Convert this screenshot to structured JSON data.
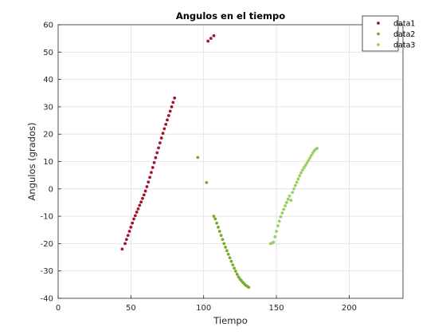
{
  "chart_data": {
    "type": "scatter",
    "title": "Angulos en el tiempo",
    "xlabel": "Tiempo",
    "ylabel": "Angulos (grados)",
    "xlim": [
      0,
      237
    ],
    "ylim": [
      -40,
      60
    ],
    "xticks": [
      0,
      50,
      100,
      150,
      200
    ],
    "yticks": [
      -40,
      -30,
      -20,
      -10,
      0,
      10,
      20,
      30,
      40,
      50,
      60
    ],
    "grid": true,
    "legend_position": "top-right",
    "series": [
      {
        "name": "data1",
        "color": "#a2142f",
        "x": [
          44,
          46,
          47,
          48,
          49,
          50,
          51,
          52,
          53,
          54,
          55,
          56,
          57,
          58,
          59,
          60,
          61,
          62,
          63,
          64,
          65,
          66,
          67,
          68,
          69,
          70,
          71,
          72,
          73,
          74,
          75,
          76,
          77,
          78,
          79,
          80,
          103,
          105,
          107
        ],
        "y": [
          -22,
          -20,
          -18.5,
          -17,
          -15.5,
          -14,
          -12.5,
          -11,
          -9.8,
          -8.5,
          -7.3,
          -6,
          -4.8,
          -3.5,
          -2.2,
          -0.8,
          0.8,
          2.5,
          4.2,
          6,
          7.8,
          9.6,
          11.4,
          13.2,
          15,
          16.8,
          18.6,
          20.3,
          22,
          23.6,
          25.2,
          26.8,
          28.4,
          30,
          31.6,
          33.2,
          54,
          55,
          56
        ]
      },
      {
        "name": "data2",
        "color": "#77ac30",
        "x": [
          96,
          102,
          107,
          108,
          109,
          110,
          111,
          112,
          113,
          114,
          115,
          116,
          117,
          118,
          119,
          120,
          121,
          122,
          123,
          124,
          125,
          126,
          127,
          128,
          129,
          130,
          131
        ],
        "y": [
          11.5,
          2.3,
          -10,
          -11,
          -12.5,
          -14,
          -15.5,
          -17,
          -18.5,
          -20,
          -21.3,
          -22.6,
          -23.9,
          -25.2,
          -26.5,
          -27.8,
          -29,
          -30.1,
          -31.2,
          -32.2,
          -33,
          -33.6,
          -34.2,
          -34.8,
          -35.3,
          -35.6,
          -36
        ]
      },
      {
        "name": "data3",
        "color": "#9bd065",
        "x": [
          146,
          147,
          148,
          149,
          150,
          151,
          152,
          153,
          154,
          155,
          156,
          157,
          158,
          159,
          160,
          161,
          162,
          163,
          164,
          165,
          166,
          167,
          168,
          169,
          170,
          171,
          172,
          173,
          174,
          175,
          176,
          177,
          178
        ],
        "y": [
          -20,
          -19.8,
          -19.5,
          -17.5,
          -15.5,
          -13.5,
          -11.8,
          -10.2,
          -8.8,
          -7.5,
          -6.2,
          -5,
          -3.8,
          -2.6,
          -4.2,
          -1.3,
          0,
          1.2,
          2.4,
          3.6,
          4.8,
          5.9,
          6.9,
          7.8,
          8.6,
          9.5,
          10.4,
          11.3,
          12.2,
          13.1,
          13.9,
          14.5,
          14.8
        ]
      }
    ]
  }
}
